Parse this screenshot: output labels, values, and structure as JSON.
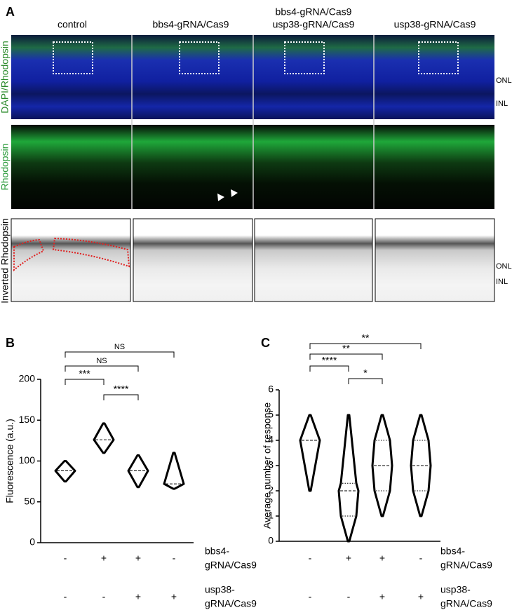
{
  "panel_a": {
    "label": "A",
    "columns": [
      [
        "control"
      ],
      [
        "bbs4-gRNA/Cas9"
      ],
      [
        "bbs4-gRNA/Cas9",
        "usp38-gRNA/Cas9"
      ],
      [
        "usp38-gRNA/Cas9"
      ]
    ],
    "rows": [
      "DAPI/Rhodopsin",
      "Rhodopsin",
      "Inverted Rhodopsin"
    ],
    "layer_labels_top": [
      "ONL",
      "INL"
    ],
    "layer_labels_bottom": [
      "ONL",
      "INL"
    ]
  },
  "chart_data": [
    {
      "type": "violin",
      "label": "B",
      "ylabel": "Fluorescence (a.u.)",
      "ylim": [
        0,
        200
      ],
      "yticks": [
        0,
        50,
        100,
        150,
        200
      ],
      "groups": [
        {
          "min": 75,
          "median": 88,
          "max": 100
        },
        {
          "min": 110,
          "median": 126,
          "max": 146
        },
        {
          "min": 68,
          "median": 88,
          "max": 107
        },
        {
          "min": 66,
          "median": 72,
          "max": 110
        }
      ],
      "significance": [
        {
          "from": 0,
          "to": 3,
          "label": "NS"
        },
        {
          "from": 0,
          "to": 2,
          "label": "NS"
        },
        {
          "from": 0,
          "to": 1,
          "label": "***"
        },
        {
          "from": 1,
          "to": 2,
          "label": "****"
        }
      ],
      "conditions": [
        {
          "name": [
            "bbs4-",
            "gRNA/Cas9"
          ],
          "signs": [
            "-",
            "+",
            "+",
            "-"
          ]
        },
        {
          "name": [
            "usp38-",
            "gRNA/Cas9"
          ],
          "signs": [
            "-",
            "-",
            "+",
            "+"
          ]
        }
      ]
    },
    {
      "type": "violin",
      "label": "C",
      "ylabel": "Average number of response",
      "ylim": [
        0,
        6
      ],
      "yticks": [
        0,
        1,
        2,
        3,
        4,
        5,
        6
      ],
      "groups": [
        {
          "min": 2,
          "median": 4,
          "max": 5
        },
        {
          "min": 0,
          "q1": 1,
          "median": 2,
          "q3": 2.3,
          "max": 5
        },
        {
          "min": 1,
          "q1": 2,
          "median": 3,
          "q3": 4,
          "max": 5
        },
        {
          "min": 1,
          "q1": 2,
          "median": 3,
          "q3": 4,
          "max": 5
        }
      ],
      "significance": [
        {
          "from": 0,
          "to": 3,
          "label": "**"
        },
        {
          "from": 0,
          "to": 2,
          "label": "**"
        },
        {
          "from": 0,
          "to": 1,
          "label": "****"
        },
        {
          "from": 1,
          "to": 2,
          "label": "*"
        }
      ],
      "conditions": [
        {
          "name": [
            "bbs4-",
            "gRNA/Cas9"
          ],
          "signs": [
            "-",
            "+",
            "+",
            "-"
          ]
        },
        {
          "name": [
            "usp38-",
            "gRNA/Cas9"
          ],
          "signs": [
            "-",
            "-",
            "+",
            "+"
          ]
        }
      ]
    }
  ]
}
